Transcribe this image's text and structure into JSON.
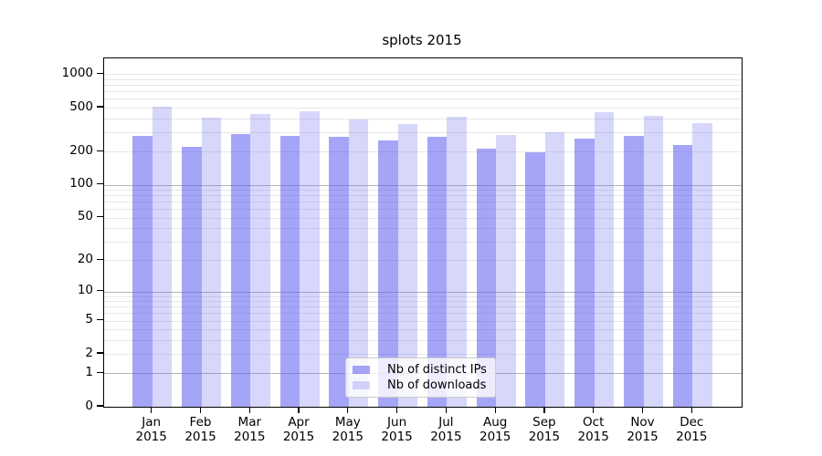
{
  "figure_title": "splots 2015",
  "chart_data": {
    "type": "bar",
    "title": "splots 2015",
    "categories": [
      "Jan",
      "Feb",
      "Mar",
      "Apr",
      "May",
      "Jun",
      "Jul",
      "Aug",
      "Sep",
      "Oct",
      "Nov",
      "Dec"
    ],
    "category_year": "2015",
    "series": [
      {
        "name": "Nb of distinct IPs",
        "color": "rgba(95,95,240,0.56)",
        "color_hex_on_white": "#a8a8f7",
        "values": [
          280,
          222,
          290,
          280,
          273,
          250,
          273,
          214,
          196,
          264,
          278,
          231
        ]
      },
      {
        "name": "Nb of downloads",
        "color": "rgba(95,95,240,0.25)",
        "color_hex_on_white": "#d7d7fb",
        "values": [
          505,
          408,
          441,
          468,
          388,
          358,
          413,
          281,
          302,
          459,
          425,
          365
        ]
      }
    ],
    "yticks": [
      0,
      1,
      2,
      5,
      10,
      20,
      50,
      100,
      200,
      500,
      1000
    ],
    "ylim": [
      0,
      1380
    ],
    "xlabel": "",
    "ylabel": "",
    "scale": "symlog (log1p)",
    "grid": "horizontal log major+minor",
    "legend_position": "lower center",
    "colors": {
      "grid_major": "#b4b4b4",
      "grid_minor": "#e7e7e7",
      "axis": "#000000",
      "legend_border": "#cbcbcb",
      "legend_background": "rgba(255,255,255,0.8)"
    }
  }
}
